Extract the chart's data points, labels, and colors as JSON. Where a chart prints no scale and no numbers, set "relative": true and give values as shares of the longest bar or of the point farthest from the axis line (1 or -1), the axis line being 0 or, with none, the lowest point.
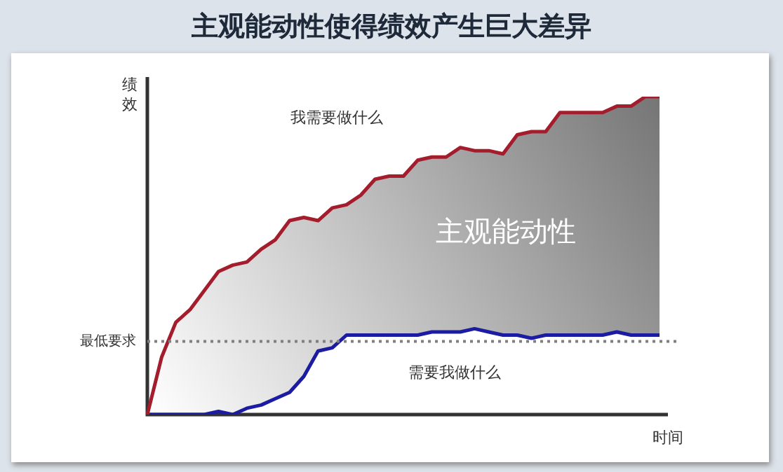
{
  "chart_data": {
    "type": "line",
    "title": "主观能动性使得绩效产生巨大差异",
    "xlabel": "时间",
    "ylabel": "绩效",
    "relative": true,
    "legend": false,
    "marker": "none",
    "line_style": "solid",
    "categories": [
      null,
      null,
      null,
      null,
      null,
      null,
      null,
      null,
      null,
      null,
      null,
      null,
      null,
      null,
      null,
      null,
      null,
      null,
      null,
      null,
      null,
      null,
      null,
      null,
      null,
      null,
      null,
      null,
      null,
      null,
      null,
      null,
      null,
      null,
      null,
      null,
      null
    ],
    "series": [
      {
        "type": "area",
        "color": "#a31d2d",
        "values": [
          0,
          0.18,
          0.29,
          0.33,
          0.39,
          0.45,
          0.47,
          0.48,
          0.52,
          0.55,
          0.61,
          0.62,
          0.61,
          0.65,
          0.66,
          0.69,
          0.74,
          0.75,
          0.75,
          0.8,
          0.81,
          0.81,
          0.84,
          0.83,
          0.83,
          0.82,
          0.88,
          0.89,
          0.89,
          0.95,
          0.95,
          0.95,
          0.95,
          0.97,
          0.97,
          1,
          1
        ]
      },
      {
        "color": "#1c1ca3",
        "values": [
          0,
          0,
          0,
          0,
          0,
          0.01,
          0,
          0.02,
          0.03,
          0.05,
          0.07,
          0.12,
          0.2,
          0.21,
          0.25,
          0.25,
          0.25,
          0.25,
          0.25,
          0.25,
          0.26,
          0.26,
          0.26,
          0.27,
          0.26,
          0.25,
          0.25,
          0.24,
          0.25,
          0.25,
          0.25,
          0.25,
          0.25,
          0.26,
          0.25,
          0.25,
          0.25
        ]
      }
    ],
    "ref_lines": [
      {
        "axis": "y",
        "value": 0.23,
        "label": "最低要求",
        "color": "#808080",
        "line_style": "dotted"
      }
    ],
    "annotations": [
      "主观能动性",
      "我需要做什么",
      "需要我做什么"
    ]
  }
}
